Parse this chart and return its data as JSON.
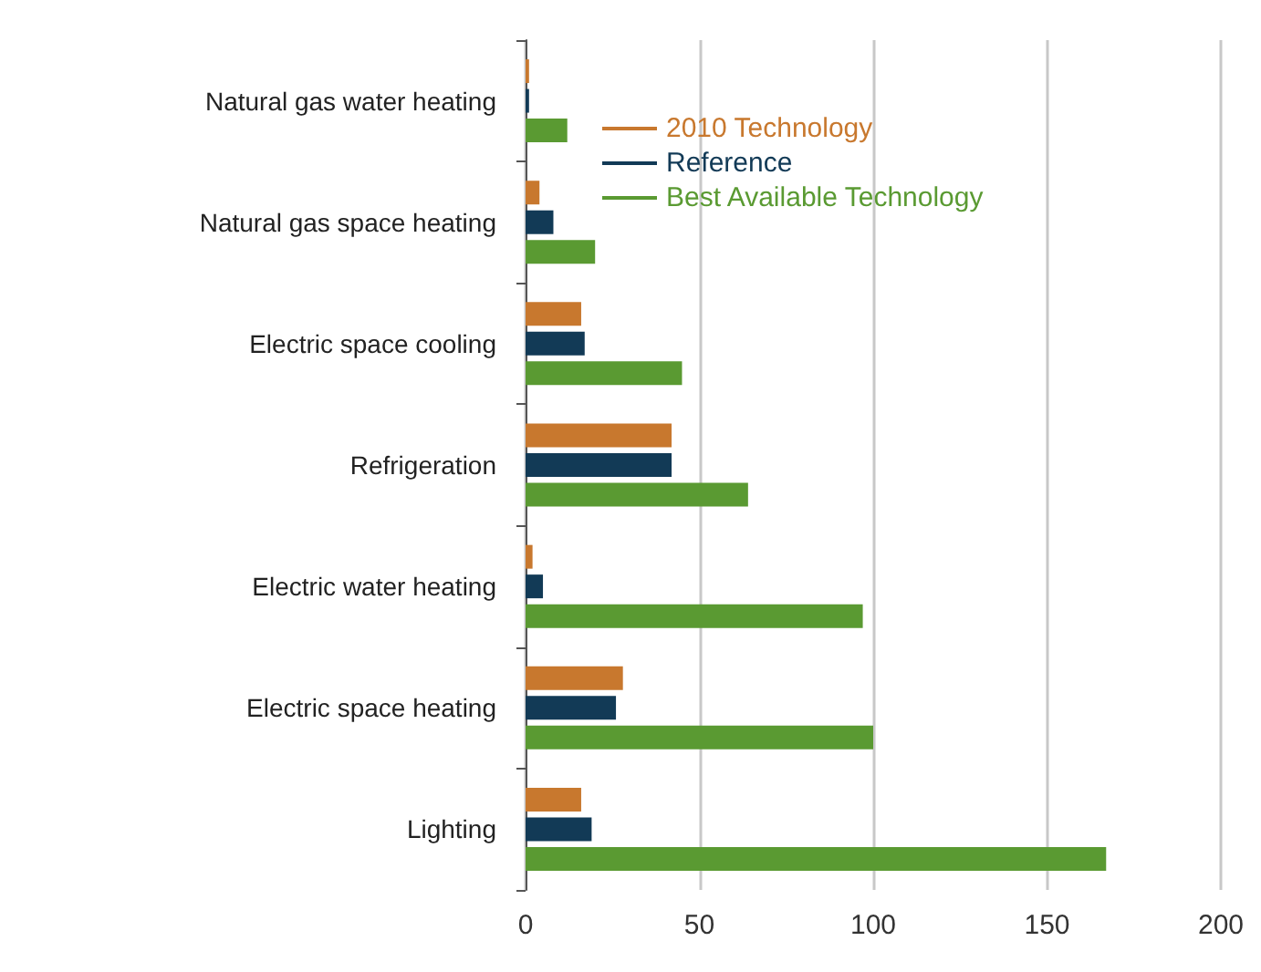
{
  "chart_data": {
    "type": "bar",
    "orientation": "horizontal",
    "categories": [
      "Natural gas water heating",
      "Natural gas space heating",
      "Electric space cooling",
      "Refrigeration",
      "Electric water heating",
      "Electric space heating",
      "Lighting"
    ],
    "series": [
      {
        "name": "2010 Technology",
        "color": "#c8782e",
        "values": [
          1,
          4,
          16,
          42,
          2,
          28,
          16
        ]
      },
      {
        "name": "Reference",
        "color": "#123a56",
        "values": [
          1,
          8,
          17,
          42,
          5,
          26,
          19
        ]
      },
      {
        "name": "Best Available Technology",
        "color": "#5a9a32",
        "values": [
          12,
          20,
          45,
          64,
          97,
          100,
          167
        ]
      }
    ],
    "xlim": [
      0,
      200
    ],
    "xticks": [
      0,
      50,
      100,
      150,
      200
    ],
    "grid": "x",
    "legend": "top"
  }
}
